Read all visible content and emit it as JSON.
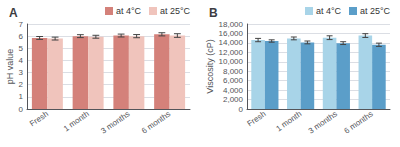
{
  "chart_data": [
    {
      "type": "bar",
      "title": "A",
      "categories": [
        "Fresh",
        "1 month",
        "3 months",
        "6 months"
      ],
      "series": [
        {
          "name": "at 4°C",
          "color": "#d4817a",
          "values": [
            5.85,
            6.0,
            6.05,
            6.15
          ],
          "errors": [
            0.12,
            0.12,
            0.12,
            0.13
          ]
        },
        {
          "name": "at 25°C",
          "color": "#f0c4bc",
          "values": [
            5.8,
            5.95,
            6.0,
            6.05
          ],
          "errors": [
            0.12,
            0.12,
            0.13,
            0.15
          ]
        }
      ],
      "ylabel": "pH value",
      "ylim": [
        0,
        7.0
      ],
      "yticks": [
        0,
        1,
        2,
        3,
        4,
        5,
        6,
        7
      ],
      "grid": true,
      "legend": "upper right"
    },
    {
      "type": "bar",
      "title": "B",
      "categories": [
        "Fresh",
        "1 month",
        "3 months",
        "6 months"
      ],
      "series": [
        {
          "name": "at 4°C",
          "color": "#a8d4e8",
          "values": [
            14600,
            14950,
            15100,
            15550
          ],
          "errors": [
            350,
            300,
            400,
            400
          ]
        },
        {
          "name": "at 25°C",
          "color": "#5b9ec9",
          "values": [
            14400,
            14100,
            13950,
            13600
          ],
          "errors": [
            250,
            300,
            300,
            350
          ]
        }
      ],
      "ylabel": "Viscosity (cP)",
      "ylim": [
        0,
        18000
      ],
      "yticks": [
        0,
        {
          "value": 2000,
          "label": "2,000"
        },
        {
          "value": 4000,
          "label": "4,000"
        },
        {
          "value": 6000,
          "label": "6,000"
        },
        {
          "value": 8000,
          "label": "8,000"
        },
        {
          "value": 10000,
          "label": "10,000"
        },
        {
          "value": 12000,
          "label": "12,000"
        },
        {
          "value": 14000,
          "label": "14,000"
        },
        {
          "value": 16000,
          "label": "16,000"
        },
        {
          "value": 18000,
          "label": "18,000"
        }
      ],
      "grid": true,
      "legend": "upper right"
    }
  ]
}
